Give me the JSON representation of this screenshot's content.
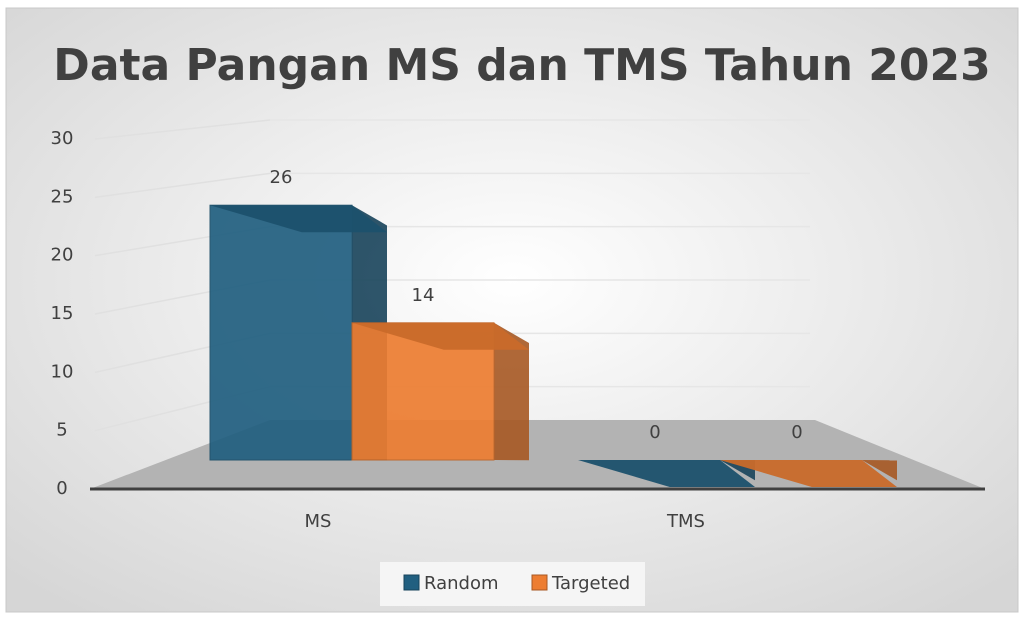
{
  "chart_data": {
    "type": "bar3d",
    "title": "Data Pangan MS dan TMS Tahun 2023",
    "categories": [
      "MS",
      "TMS"
    ],
    "series": [
      {
        "name": "Random",
        "color": "#215f80",
        "values": [
          26,
          0
        ]
      },
      {
        "name": "Targeted",
        "color": "#ed7d31",
        "values": [
          14,
          0
        ]
      }
    ],
    "ylim": [
      0,
      30
    ],
    "yticks": [
      0,
      5,
      10,
      15,
      20,
      25,
      30
    ],
    "grid": true,
    "legend": "bottom"
  }
}
